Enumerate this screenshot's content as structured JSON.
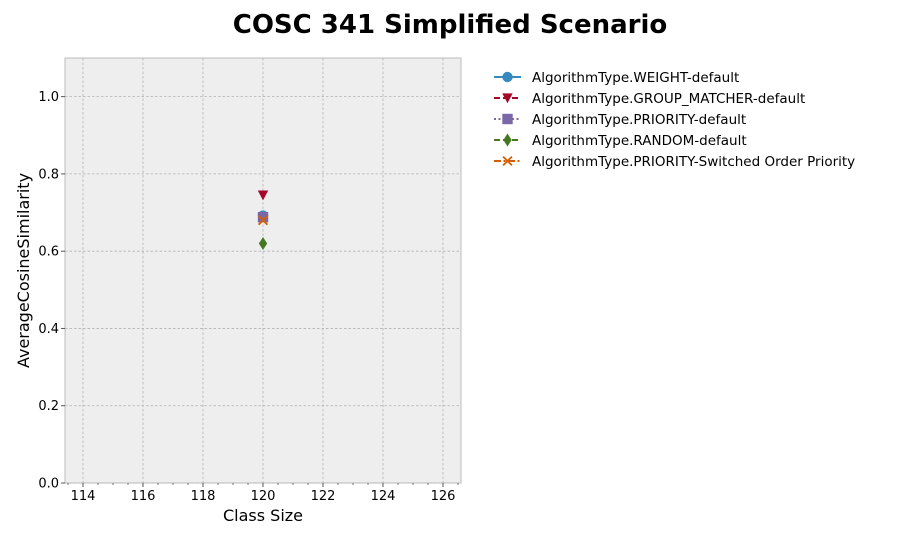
{
  "chart_data": {
    "type": "line",
    "title": "COSC 341 Simplified Scenario",
    "xlabel": "Class Size",
    "ylabel": "AverageCosineSimilarity",
    "xlim": [
      113.4,
      126.6
    ],
    "ylim": [
      0.0,
      1.1
    ],
    "x_ticks": [
      114,
      116,
      118,
      120,
      122,
      124,
      126
    ],
    "y_ticks": [
      0.0,
      0.2,
      0.4,
      0.6,
      0.8,
      1.0
    ],
    "x_tick_labels": [
      "114",
      "116",
      "118",
      "120",
      "122",
      "124",
      "126"
    ],
    "y_tick_labels": [
      "0.0",
      "0.2",
      "0.4",
      "0.6",
      "0.8",
      "1.0"
    ],
    "grid": true,
    "legend_position": "outside-right",
    "series": [
      {
        "name": "AlgorithmType.WEIGHT-default",
        "x": [
          120
        ],
        "values": [
          0.692
        ],
        "color": "#348abd",
        "marker": "circle",
        "line_style": "solid"
      },
      {
        "name": "AlgorithmType.GROUP_MATCHER-default",
        "x": [
          120
        ],
        "values": [
          0.745
        ],
        "color": "#a60628",
        "marker": "triangle-down",
        "line_style": "dashed"
      },
      {
        "name": "AlgorithmType.PRIORITY-default",
        "x": [
          120
        ],
        "values": [
          0.688
        ],
        "color": "#7a68a6",
        "marker": "square",
        "line_style": "dotted"
      },
      {
        "name": "AlgorithmType.RANDOM-default",
        "x": [
          120
        ],
        "values": [
          0.62
        ],
        "color": "#467821",
        "marker": "diamond",
        "line_style": "dashed"
      },
      {
        "name": "AlgorithmType.PRIORITY-Switched Order Priority",
        "x": [
          120
        ],
        "values": [
          0.68
        ],
        "color": "#d55e00",
        "marker": "x",
        "line_style": "dashdot"
      }
    ]
  }
}
